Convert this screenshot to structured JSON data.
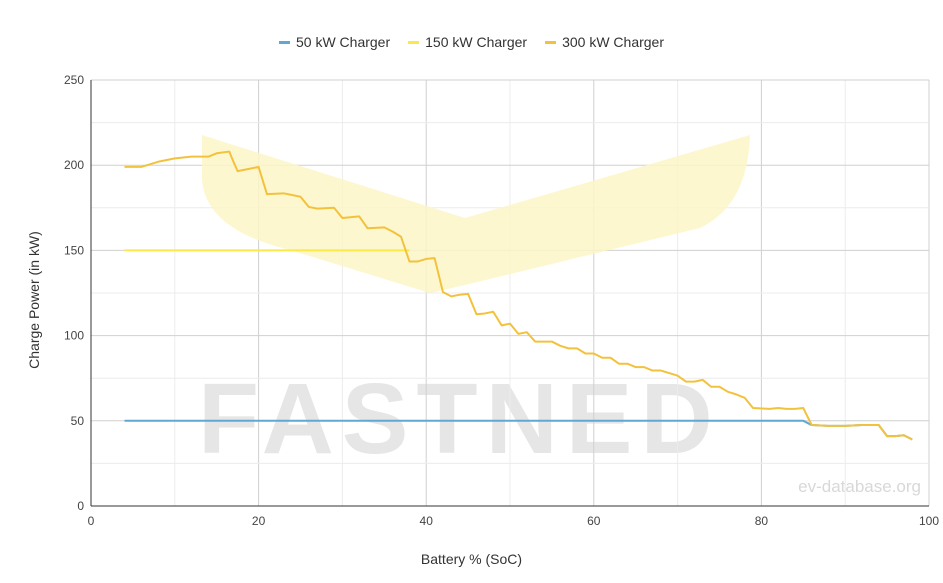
{
  "chart_data": {
    "type": "line",
    "xlabel": "Battery % (SoC)",
    "ylabel": "Charge Power (in kW)",
    "xlim": [
      0,
      100
    ],
    "ylim": [
      0,
      250
    ],
    "xticks": [
      0,
      20,
      40,
      60,
      80,
      100
    ],
    "yticks": [
      0,
      50,
      100,
      150,
      200,
      250
    ],
    "grid": true,
    "legend_position": "top-center",
    "watermark": "FASTNED",
    "credit": "ev-database.org",
    "series": [
      {
        "name": "50 kW Charger",
        "color": "#5fa8d3",
        "points": [
          [
            4,
            50
          ],
          [
            85,
            50
          ],
          [
            86,
            47.5
          ],
          [
            88,
            47
          ],
          [
            90,
            47
          ],
          [
            92,
            47.5
          ],
          [
            94,
            47.5
          ],
          [
            95,
            41
          ],
          [
            96,
            41
          ],
          [
            97,
            41.5
          ],
          [
            98,
            39
          ]
        ]
      },
      {
        "name": "150 kW Charger",
        "color": "#fde84a",
        "points": [
          [
            4,
            150
          ],
          [
            38,
            150
          ]
        ]
      },
      {
        "name": "300 kW Charger",
        "color": "#f3c23c",
        "points": [
          [
            4,
            199
          ],
          [
            6,
            199
          ],
          [
            8,
            202
          ],
          [
            10,
            204
          ],
          [
            12,
            205
          ],
          [
            14,
            205
          ],
          [
            15,
            207
          ],
          [
            16.5,
            208
          ],
          [
            17,
            202
          ],
          [
            17.5,
            196.5
          ],
          [
            19,
            198
          ],
          [
            20,
            199
          ],
          [
            21,
            183
          ],
          [
            23,
            183.5
          ],
          [
            25,
            181.5
          ],
          [
            26,
            175.5
          ],
          [
            27,
            174.5
          ],
          [
            29,
            175
          ],
          [
            30,
            169
          ],
          [
            32,
            170
          ],
          [
            33,
            163
          ],
          [
            35,
            163.5
          ],
          [
            36,
            161
          ],
          [
            37,
            158
          ],
          [
            38,
            143.5
          ],
          [
            39,
            143.5
          ],
          [
            40,
            145
          ],
          [
            41,
            145.5
          ],
          [
            42,
            125.5
          ],
          [
            43,
            123
          ],
          [
            44,
            124
          ],
          [
            45,
            124.5
          ],
          [
            46,
            112.5
          ],
          [
            47,
            113
          ],
          [
            48,
            114
          ],
          [
            49,
            106
          ],
          [
            50,
            107
          ],
          [
            51,
            101
          ],
          [
            52,
            102
          ],
          [
            53,
            96.5
          ],
          [
            55,
            96.5
          ],
          [
            56,
            94
          ],
          [
            57,
            92.5
          ],
          [
            58,
            92.5
          ],
          [
            59,
            89.5
          ],
          [
            60,
            89.5
          ],
          [
            61,
            87
          ],
          [
            62,
            87
          ],
          [
            63,
            83.5
          ],
          [
            64,
            83.5
          ],
          [
            65,
            81.5
          ],
          [
            66,
            81.5
          ],
          [
            67,
            79.5
          ],
          [
            68,
            79.5
          ],
          [
            69,
            78
          ],
          [
            70,
            76.5
          ],
          [
            71,
            73
          ],
          [
            72,
            73
          ],
          [
            73,
            74
          ],
          [
            74,
            70
          ],
          [
            75,
            70
          ],
          [
            76,
            67
          ],
          [
            77,
            65.5
          ],
          [
            78,
            63.5
          ],
          [
            79,
            57.5
          ],
          [
            81,
            57
          ],
          [
            82,
            57.5
          ],
          [
            83,
            57
          ],
          [
            84,
            57
          ],
          [
            85,
            57.5
          ],
          [
            86,
            47.5
          ],
          [
            88,
            47
          ],
          [
            90,
            47
          ],
          [
            92,
            47.5
          ],
          [
            94,
            47.5
          ],
          [
            95,
            41
          ],
          [
            96,
            41
          ],
          [
            97,
            41.5
          ],
          [
            98,
            39
          ]
        ]
      }
    ]
  }
}
